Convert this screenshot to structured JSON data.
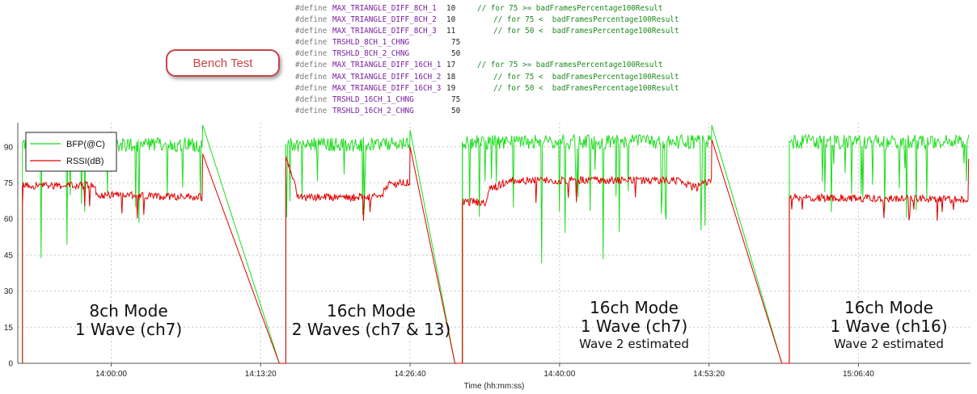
{
  "code_block": {
    "lines": [
      {
        "kw": "#define",
        "macro": "MAX_TRIANGLE_DIFF_8CH_1",
        "value": "10",
        "comment": "// for 75 >= badFramesPercentage100Result"
      },
      {
        "kw": "#define",
        "macro": "MAX_TRIANGLE_DIFF_8CH_2",
        "value": "10",
        "comment": "// for 75 <  badFramesPercentage100Result"
      },
      {
        "kw": "#define",
        "macro": "MAX_TRIANGLE_DIFF_8CH_3",
        "value": "11",
        "comment": "// for 50 <  badFramesPercentage100Result"
      },
      {
        "kw": "#define",
        "macro": "TRSHLD_8CH_1_CHNG",
        "value": "75",
        "comment": ""
      },
      {
        "kw": "#define",
        "macro": "TRSHLD_8CH_2_CHNG",
        "value": "50",
        "comment": ""
      },
      {
        "kw": "#define",
        "macro": "MAX_TRIANGLE_DIFF_16CH_1",
        "value": "17",
        "comment": "// for 75 >= badFramesPercentage100Result"
      },
      {
        "kw": "#define",
        "macro": "MAX_TRIANGLE_DIFF_16CH_2",
        "value": "18",
        "comment": "// for 75 <  badFramesPercentage100Result"
      },
      {
        "kw": "#define",
        "macro": "MAX_TRIANGLE_DIFF_16CH_3",
        "value": "19",
        "comment": "// for 50 <  badFramesPercentage100Result"
      },
      {
        "kw": "#define",
        "macro": "TRSHLD_16CH_1_CHNG",
        "value": "75",
        "comment": ""
      },
      {
        "kw": "#define",
        "macro": "TRSHLD_16CH_2_CHNG",
        "value": "50",
        "comment": ""
      }
    ]
  },
  "callout": {
    "label": "Bench Test"
  },
  "chart_data": {
    "type": "line",
    "xlabel": "Time (hh:mm:ss)",
    "x_ticks": [
      "14:00:00",
      "14:13:20",
      "14:26:40",
      "14:40:00",
      "14:53:20",
      "15:06:40"
    ],
    "x_tick_seconds": [
      50400,
      51200,
      52000,
      52800,
      53600,
      54400
    ],
    "xlim": [
      49900,
      55000
    ],
    "ylim": [
      0,
      100
    ],
    "y_ticks": [
      0,
      15,
      30,
      45,
      60,
      75,
      90
    ],
    "grid": "dashed",
    "legend_position": "top-left",
    "series": [
      {
        "name": "BFP(@C)",
        "color": "#1fdc1f"
      },
      {
        "name": "RSSI(dB)",
        "color": "#e00000"
      }
    ],
    "segments": [
      {
        "start": 49925,
        "end": 50890,
        "bfp": 91,
        "rssi": [
          [
            49925,
            74
          ],
          [
            50310,
            74
          ],
          [
            50320,
            70
          ],
          [
            50890,
            69
          ]
        ],
        "end_bfp": 99,
        "end_rssi": 87
      },
      {
        "start": 51335,
        "end": 52000,
        "bfp": 91,
        "rssi": [
          [
            51335,
            86
          ],
          [
            51385,
            74
          ],
          [
            51400,
            69
          ],
          [
            51850,
            69
          ],
          [
            51870,
            74
          ],
          [
            51970,
            75
          ]
        ],
        "end_bfp": 97,
        "end_rssi": 90
      },
      {
        "start": 52280,
        "end": 53615,
        "bfp": 92,
        "rssi": [
          [
            52280,
            67
          ],
          [
            52410,
            67
          ],
          [
            52420,
            72
          ],
          [
            52530,
            76
          ],
          [
            53430,
            76
          ],
          [
            53530,
            73
          ],
          [
            53600,
            76
          ]
        ],
        "end_bfp": 99,
        "end_rssi": 93
      },
      {
        "start": 54030,
        "end": 54990,
        "bfp": 92,
        "rssi": [
          [
            54030,
            69
          ],
          [
            54990,
            68
          ]
        ],
        "end_bfp": 95,
        "end_rssi": 85
      }
    ],
    "drops": [
      {
        "from_x": 50890,
        "to_x": 51300,
        "value": 0
      },
      {
        "from_x": 52000,
        "to_x": 52240,
        "value": 0
      },
      {
        "from_x": 53615,
        "to_x": 53990,
        "value": 0
      }
    ],
    "annotations": [
      {
        "lines": [
          "8ch Mode",
          "1 Wave (ch7)"
        ]
      },
      {
        "lines": [
          "16ch Mode",
          "2 Waves (ch7 & 13)"
        ]
      },
      {
        "lines": [
          "16ch Mode",
          "1 Wave (ch7)",
          "Wave 2 estimated"
        ]
      },
      {
        "lines": [
          "16ch Mode",
          "1 Wave (ch16)",
          "Wave 2 estimated"
        ]
      }
    ]
  }
}
